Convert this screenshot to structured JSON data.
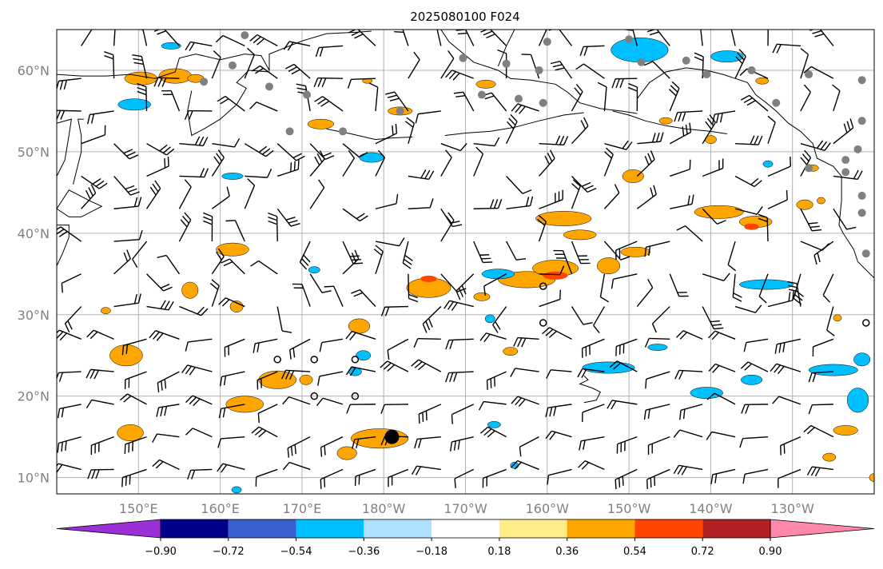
{
  "title": "2025080100 F024",
  "map": {
    "lon_min": 140,
    "lon_max": 240,
    "lat_min": 8,
    "lat_max": 65,
    "lat_labels": [
      "10°N",
      "20°N",
      "30°N",
      "40°N",
      "50°N",
      "60°N"
    ],
    "lat_values": [
      10,
      20,
      30,
      40,
      50,
      60
    ],
    "lon_labels": [
      "150°E",
      "160°E",
      "170°E",
      "180°W",
      "170°W",
      "160°W",
      "150°W",
      "140°W",
      "130°W"
    ],
    "lon_values": [
      150,
      160,
      170,
      180,
      190,
      200,
      210,
      220,
      230
    ],
    "grid_color": "#b0b0b0",
    "label_color": "#808080"
  },
  "colorbar": {
    "ticks": [
      "−0.90",
      "−0.72",
      "−0.54",
      "−0.36",
      "−0.18",
      "0.18",
      "0.36",
      "0.54",
      "0.72",
      "0.90"
    ],
    "colors": [
      "#9b30d9",
      "#00008b",
      "#3a5fcd",
      "#00bfff",
      "#b0e0ff",
      "#ffffff",
      "#ffee88",
      "#ffa500",
      "#ff4500",
      "#b22222",
      "#ff88aa"
    ]
  },
  "fields": {
    "positive_color": "#ffa500",
    "positive_strong_color": "#ff4500",
    "negative_color": "#00bfff",
    "negative_light_color": "#b0e0ff"
  },
  "markers": {
    "station_color": "#808080",
    "storm_center": {
      "lon": 181,
      "lat": 15
    }
  }
}
